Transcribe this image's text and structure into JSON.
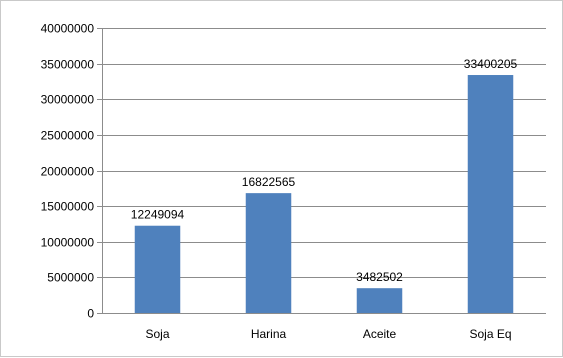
{
  "chart_data": {
    "type": "bar",
    "title": "",
    "xlabel": "",
    "ylabel": "",
    "categories": [
      "Soja",
      "Harina",
      "Aceite",
      "Soja Eq"
    ],
    "series": [
      {
        "values": [
          12249094,
          16822565,
          3482502,
          33400205
        ]
      }
    ],
    "data_labels": [
      "12249094",
      "16822565",
      "3482502",
      "33400205"
    ],
    "y_ticks": [
      "0",
      "5000000",
      "10000000",
      "15000000",
      "20000000",
      "25000000",
      "30000000",
      "35000000",
      "40000000"
    ],
    "ylim": [
      0,
      40000000
    ],
    "grid": true,
    "legend": "none",
    "bar_color": "#4f81bd",
    "grid_color": "#8c8c8c"
  }
}
